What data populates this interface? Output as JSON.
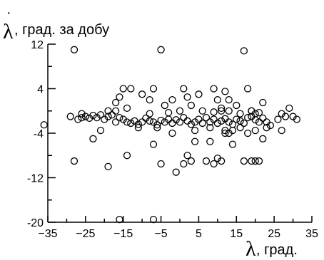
{
  "chart_data": {
    "type": "scatter",
    "title": "",
    "xlabel": "λ, град.",
    "xlabel_symbol": "λ",
    "xlabel_text": ", град.",
    "ylabel": "λ̇, град. за добу",
    "ylabel_symbol": "λ",
    "ylabel_text": ", град. за добу",
    "xlim": [
      -35,
      35
    ],
    "ylim": [
      -20,
      12
    ],
    "xticks": [
      -35,
      -25,
      -15,
      -5,
      5,
      15,
      25,
      35
    ],
    "xtick_labels": [
      "−35",
      "−25",
      "−15",
      "−5",
      "5",
      "15",
      "25",
      "35"
    ],
    "yticks": [
      -20,
      -12,
      -4,
      4,
      12
    ],
    "ytick_labels": [
      "-20",
      "-12",
      "-4",
      "4",
      "12"
    ],
    "grid": false,
    "marker": "open-circle",
    "points": [
      [
        -28,
        11
      ],
      [
        -5,
        11
      ],
      [
        17,
        10.8
      ],
      [
        -36,
        -2.5
      ],
      [
        -29,
        -1
      ],
      [
        -27,
        -1.5
      ],
      [
        -26,
        -1.2
      ],
      [
        -25,
        -1
      ],
      [
        -24,
        -1.3
      ],
      [
        -23,
        -0.8
      ],
      [
        -22,
        -1.2
      ],
      [
        -21,
        -0.7
      ],
      [
        -20,
        -1.5
      ],
      [
        -19,
        -1
      ],
      [
        -18,
        -0.7
      ],
      [
        -17,
        -2
      ],
      [
        -16,
        -1.2
      ],
      [
        -15,
        -1.5
      ],
      [
        -14,
        -2
      ],
      [
        -13,
        -2.2
      ],
      [
        -12,
        -1.8
      ],
      [
        -11,
        -2.4
      ],
      [
        -10,
        -2
      ],
      [
        -9,
        -1.3
      ],
      [
        -8,
        -1.8
      ],
      [
        -7,
        -2
      ],
      [
        -6,
        -2.5
      ],
      [
        -5,
        -1.7
      ],
      [
        -4,
        -2
      ],
      [
        -3,
        -1.5
      ],
      [
        -2,
        -2.2
      ],
      [
        -1,
        -1.6
      ],
      [
        0,
        -2
      ],
      [
        1,
        -1.2
      ],
      [
        2,
        -1.8
      ],
      [
        3,
        -2.4
      ],
      [
        4,
        -2
      ],
      [
        5,
        -1.5
      ],
      [
        6,
        -2.2
      ],
      [
        7,
        -1.2
      ],
      [
        8,
        -2
      ],
      [
        9,
        -1.5
      ],
      [
        10,
        -2.2
      ],
      [
        11,
        -1.8
      ],
      [
        12,
        -1.4
      ],
      [
        13,
        -2
      ],
      [
        14,
        -2.4
      ],
      [
        15,
        -1.5
      ],
      [
        16,
        -1.8
      ],
      [
        17,
        -2.2
      ],
      [
        18,
        -1.2
      ],
      [
        19,
        -1
      ],
      [
        20,
        -1.6
      ],
      [
        21,
        -2
      ],
      [
        22,
        -1.3
      ],
      [
        23,
        -2
      ],
      [
        24,
        -2.6
      ],
      [
        26,
        -1.5
      ],
      [
        28,
        -1
      ],
      [
        30,
        -1
      ],
      [
        31,
        -1.5
      ],
      [
        -26,
        -0.5
      ],
      [
        -19,
        0
      ],
      [
        -17,
        0
      ],
      [
        -8,
        -0.5
      ],
      [
        -3,
        -0.3
      ],
      [
        0,
        0
      ],
      [
        6,
        0
      ],
      [
        9,
        -0.2
      ],
      [
        11,
        0.5
      ],
      [
        13,
        0
      ],
      [
        16,
        -0.5
      ],
      [
        19,
        0
      ],
      [
        21,
        -0.3
      ],
      [
        -17,
        1.5
      ],
      [
        -16,
        2.5
      ],
      [
        -15,
        4
      ],
      [
        -14,
        0.5
      ],
      [
        -13,
        4
      ],
      [
        -10,
        3
      ],
      [
        -8,
        2
      ],
      [
        -7,
        4
      ],
      [
        -4,
        1
      ],
      [
        -2,
        2
      ],
      [
        1,
        4
      ],
      [
        2,
        2.5
      ],
      [
        3,
        1
      ],
      [
        5,
        3
      ],
      [
        9,
        4
      ],
      [
        10,
        2
      ],
      [
        11,
        0
      ],
      [
        12,
        3.5
      ],
      [
        13,
        2
      ],
      [
        15,
        1
      ],
      [
        18,
        4
      ],
      [
        19,
        0
      ],
      [
        20,
        -0.5
      ],
      [
        22,
        1.5
      ],
      [
        27,
        -0.5
      ],
      [
        29,
        0.5
      ],
      [
        -28,
        -9
      ],
      [
        -23,
        -5
      ],
      [
        -19,
        -10
      ],
      [
        -14,
        -8
      ],
      [
        -7,
        -6
      ],
      [
        -5,
        -9.5
      ],
      [
        -1,
        -11
      ],
      [
        1,
        -9.5
      ],
      [
        2,
        -8
      ],
      [
        3,
        -9
      ],
      [
        4,
        -5.5
      ],
      [
        7,
        -9
      ],
      [
        8,
        -5.5
      ],
      [
        9,
        -9.5
      ],
      [
        10,
        -8.5
      ],
      [
        11,
        -9
      ],
      [
        12,
        -4
      ],
      [
        13,
        -4
      ],
      [
        14,
        -3.5
      ],
      [
        14,
        -6
      ],
      [
        17,
        -9
      ],
      [
        19,
        -9
      ],
      [
        20,
        -9
      ],
      [
        21,
        -9
      ],
      [
        22,
        -5
      ],
      [
        -16,
        -19.5
      ],
      [
        -7,
        -19.5
      ],
      [
        -21,
        -3.5
      ],
      [
        -11,
        -3
      ],
      [
        -6,
        -3
      ],
      [
        -2,
        -4
      ],
      [
        4,
        -3.5
      ],
      [
        8,
        -3
      ],
      [
        12,
        -3.5
      ],
      [
        16,
        -3
      ],
      [
        18,
        -4
      ],
      [
        20,
        -3.5
      ],
      [
        23,
        -3
      ],
      [
        27,
        -3.5
      ]
    ]
  }
}
